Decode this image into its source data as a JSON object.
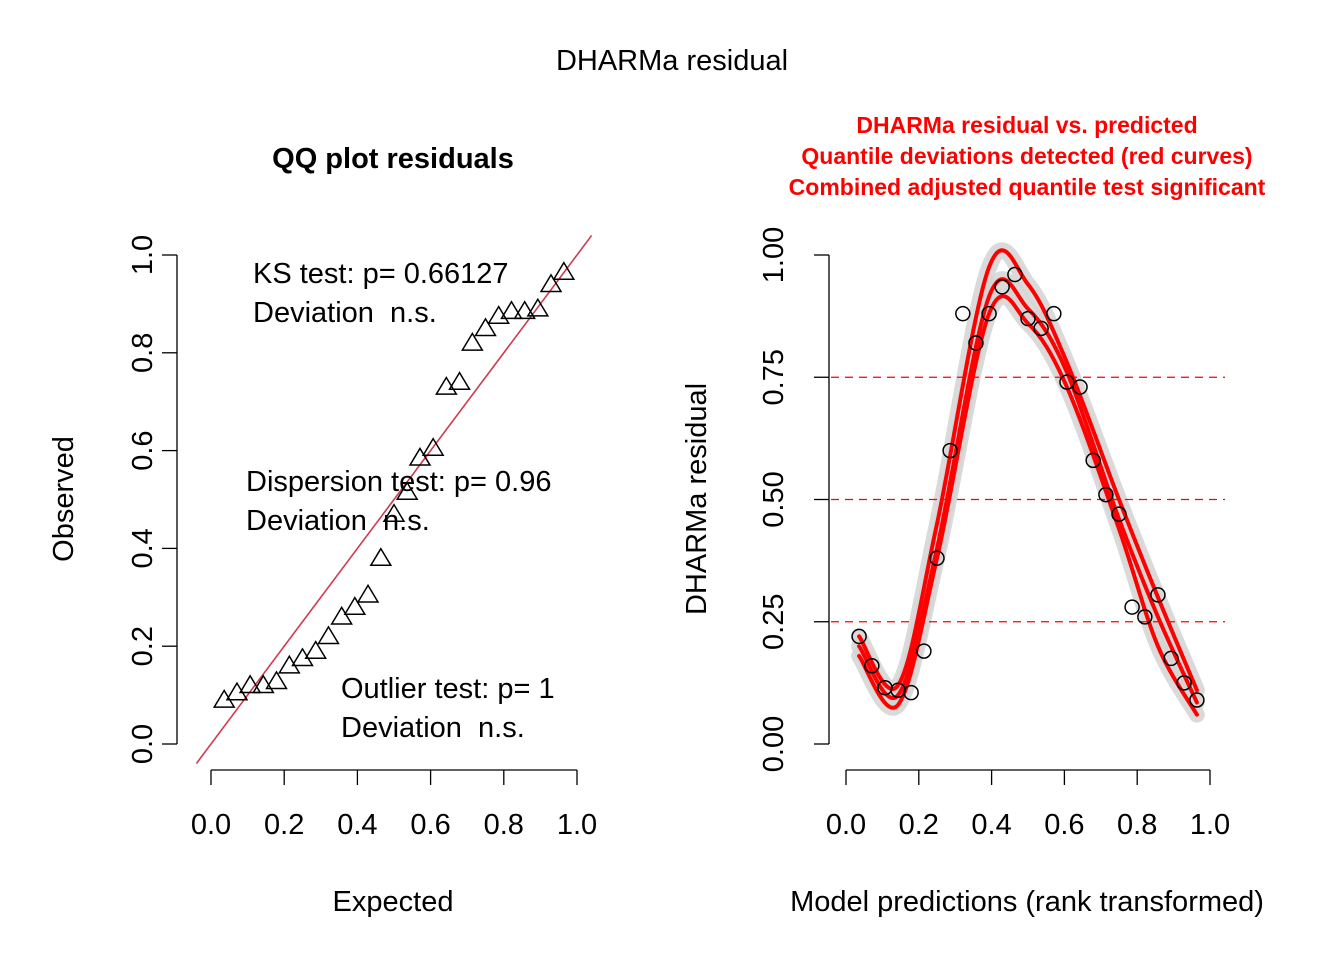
{
  "figure": {
    "title": "DHARMa residual"
  },
  "chart_data": [
    {
      "type": "scatter",
      "title": "QQ plot residuals",
      "xlabel": "Expected",
      "ylabel": "Observed",
      "xlim": [
        0,
        1
      ],
      "ylim": [
        0,
        1
      ],
      "xticks": [
        "0.0",
        "0.2",
        "0.4",
        "0.6",
        "0.8",
        "1.0"
      ],
      "yticks": [
        "0.0",
        "0.2",
        "0.4",
        "0.6",
        "0.8",
        "1.0"
      ],
      "marker": "triangle",
      "reference_line": {
        "slope": 1,
        "intercept": 0,
        "color": "#cd3b4f"
      },
      "points": [
        {
          "x": 0.036,
          "y": 0.09
        },
        {
          "x": 0.071,
          "y": 0.105
        },
        {
          "x": 0.107,
          "y": 0.12
        },
        {
          "x": 0.143,
          "y": 0.12
        },
        {
          "x": 0.179,
          "y": 0.128
        },
        {
          "x": 0.214,
          "y": 0.16
        },
        {
          "x": 0.25,
          "y": 0.175
        },
        {
          "x": 0.286,
          "y": 0.19
        },
        {
          "x": 0.321,
          "y": 0.22
        },
        {
          "x": 0.357,
          "y": 0.26
        },
        {
          "x": 0.393,
          "y": 0.28
        },
        {
          "x": 0.429,
          "y": 0.305
        },
        {
          "x": 0.464,
          "y": 0.38
        },
        {
          "x": 0.5,
          "y": 0.47
        },
        {
          "x": 0.536,
          "y": 0.515
        },
        {
          "x": 0.571,
          "y": 0.585
        },
        {
          "x": 0.607,
          "y": 0.605
        },
        {
          "x": 0.643,
          "y": 0.73
        },
        {
          "x": 0.679,
          "y": 0.74
        },
        {
          "x": 0.714,
          "y": 0.82
        },
        {
          "x": 0.75,
          "y": 0.85
        },
        {
          "x": 0.786,
          "y": 0.875
        },
        {
          "x": 0.821,
          "y": 0.885
        },
        {
          "x": 0.857,
          "y": 0.885
        },
        {
          "x": 0.893,
          "y": 0.89
        },
        {
          "x": 0.929,
          "y": 0.94
        },
        {
          "x": 0.964,
          "y": 0.965
        }
      ],
      "annotations": {
        "ks_line1": "KS test: p= 0.66127",
        "ks_line2": "Deviation  n.s.",
        "disp_line1": "Dispersion test: p= 0.96",
        "disp_line2": "Deviation  n.s.",
        "out_line1": "Outlier test: p= 1",
        "out_line2": "Deviation  n.s."
      }
    },
    {
      "type": "scatter",
      "title_lines": [
        "DHARMa residual vs. predicted",
        "Quantile deviations detected (red curves)",
        "Combined adjusted quantile test significant"
      ],
      "title_color": "#ff0000",
      "xlabel": "Model predictions (rank transformed)",
      "ylabel": "DHARMa residual",
      "xlim": [
        0,
        1
      ],
      "ylim": [
        0,
        1
      ],
      "xticks": [
        "0.0",
        "0.2",
        "0.4",
        "0.6",
        "0.8",
        "1.0"
      ],
      "yticks": [
        "0.00",
        "0.25",
        "0.50",
        "0.75",
        "1.00"
      ],
      "hlines": [
        0.25,
        0.5,
        0.75
      ],
      "marker": "circle",
      "points": [
        {
          "x": 0.036,
          "y": 0.22
        },
        {
          "x": 0.071,
          "y": 0.16
        },
        {
          "x": 0.107,
          "y": 0.115
        },
        {
          "x": 0.143,
          "y": 0.11
        },
        {
          "x": 0.179,
          "y": 0.105
        },
        {
          "x": 0.214,
          "y": 0.19
        },
        {
          "x": 0.25,
          "y": 0.38
        },
        {
          "x": 0.286,
          "y": 0.6
        },
        {
          "x": 0.321,
          "y": 0.88
        },
        {
          "x": 0.357,
          "y": 0.82
        },
        {
          "x": 0.393,
          "y": 0.88
        },
        {
          "x": 0.429,
          "y": 0.935
        },
        {
          "x": 0.464,
          "y": 0.96
        },
        {
          "x": 0.5,
          "y": 0.87
        },
        {
          "x": 0.536,
          "y": 0.85
        },
        {
          "x": 0.571,
          "y": 0.88
        },
        {
          "x": 0.607,
          "y": 0.74
        },
        {
          "x": 0.643,
          "y": 0.73
        },
        {
          "x": 0.679,
          "y": 0.58
        },
        {
          "x": 0.714,
          "y": 0.51
        },
        {
          "x": 0.75,
          "y": 0.47
        },
        {
          "x": 0.786,
          "y": 0.28
        },
        {
          "x": 0.821,
          "y": 0.26
        },
        {
          "x": 0.857,
          "y": 0.305
        },
        {
          "x": 0.893,
          "y": 0.175
        },
        {
          "x": 0.929,
          "y": 0.125
        },
        {
          "x": 0.964,
          "y": 0.09
        }
      ],
      "quantile_curves": [
        {
          "quantile": 0.75,
          "x": [
            0.036,
            0.143,
            0.25,
            0.393,
            0.5,
            0.607,
            0.75,
            0.857,
            0.964
          ],
          "y": [
            0.22,
            0.12,
            0.45,
            0.975,
            0.94,
            0.78,
            0.5,
            0.3,
            0.11
          ]
        },
        {
          "quantile": 0.5,
          "x": [
            0.036,
            0.143,
            0.25,
            0.393,
            0.5,
            0.607,
            0.75,
            0.857,
            0.964
          ],
          "y": [
            0.2,
            0.1,
            0.4,
            0.915,
            0.89,
            0.76,
            0.46,
            0.26,
            0.085
          ]
        },
        {
          "quantile": 0.25,
          "x": [
            0.036,
            0.143,
            0.25,
            0.393,
            0.5,
            0.607,
            0.75,
            0.857,
            0.964
          ],
          "y": [
            0.18,
            0.08,
            0.38,
            0.88,
            0.86,
            0.73,
            0.44,
            0.2,
            0.06
          ]
        }
      ],
      "curve_color": "#ff0000",
      "band_color": "#d3d3d3"
    }
  ]
}
